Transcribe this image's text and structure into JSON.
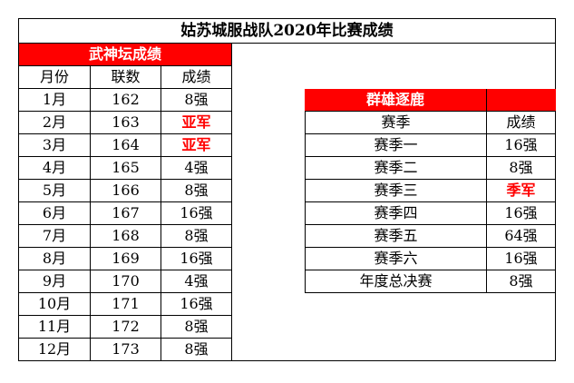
{
  "title": "姑苏城服战队2020年比赛成绩",
  "left": {
    "header": "武神坛成绩",
    "columns": [
      "月份",
      "联数",
      "成绩"
    ],
    "rows": [
      {
        "month": "1月",
        "count": "162",
        "result": "8强",
        "highlight": false
      },
      {
        "month": "2月",
        "count": "163",
        "result": "亚军",
        "highlight": true
      },
      {
        "month": "3月",
        "count": "164",
        "result": "亚军",
        "highlight": true
      },
      {
        "month": "4月",
        "count": "165",
        "result": "4强",
        "highlight": false
      },
      {
        "month": "5月",
        "count": "166",
        "result": "8强",
        "highlight": false
      },
      {
        "month": "6月",
        "count": "167",
        "result": "16强",
        "highlight": false
      },
      {
        "month": "7月",
        "count": "168",
        "result": "8强",
        "highlight": false
      },
      {
        "month": "8月",
        "count": "169",
        "result": "16强",
        "highlight": false
      },
      {
        "month": "9月",
        "count": "170",
        "result": "4强",
        "highlight": false
      },
      {
        "month": "10月",
        "count": "171",
        "result": "16强",
        "highlight": false
      },
      {
        "month": "11月",
        "count": "172",
        "result": "8强",
        "highlight": false
      },
      {
        "month": "12月",
        "count": "173",
        "result": "8强",
        "highlight": false
      }
    ]
  },
  "right": {
    "header": "群雄逐鹿",
    "columns": [
      "赛季",
      "成绩"
    ],
    "rows": [
      {
        "season": "赛季一",
        "result": "16强",
        "highlight": false
      },
      {
        "season": "赛季二",
        "result": "8强",
        "highlight": false
      },
      {
        "season": "赛季三",
        "result": "季军",
        "highlight": true
      },
      {
        "season": "赛季四",
        "result": "16强",
        "highlight": false
      },
      {
        "season": "赛季五",
        "result": "64强",
        "highlight": false
      },
      {
        "season": "赛季六",
        "result": "16强",
        "highlight": false
      },
      {
        "season": "年度总决赛",
        "result": "8强",
        "highlight": false
      }
    ]
  },
  "colors": {
    "accent": "#ff0000",
    "grid": "#000000",
    "background": "#ffffff"
  }
}
